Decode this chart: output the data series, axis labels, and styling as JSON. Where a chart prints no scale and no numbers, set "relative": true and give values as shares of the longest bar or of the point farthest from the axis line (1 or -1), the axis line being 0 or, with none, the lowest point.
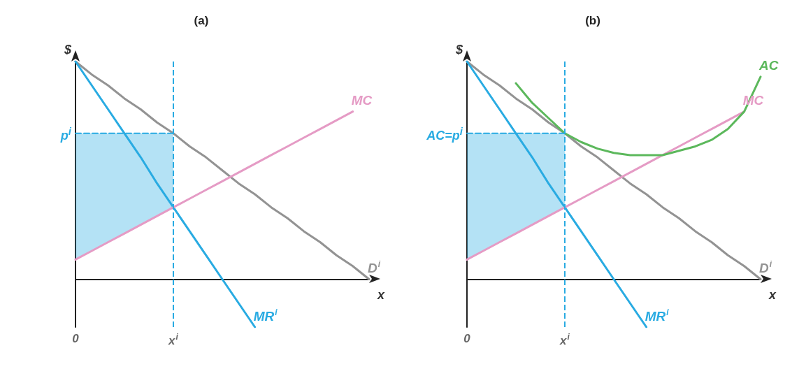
{
  "chart_data": [
    {
      "type": "line",
      "relative": true,
      "title": "(a)",
      "xlabel": "x",
      "ylabel": "$",
      "tick_labels": "x",
      "legend": false,
      "line_style": "solid",
      "categories": [
        "0",
        null,
        null,
        null,
        null,
        null,
        "x$^{i}$",
        null,
        null,
        null,
        null,
        null,
        null,
        null,
        null,
        null,
        null,
        null,
        null
      ],
      "series": [
        {
          "name": "D$^{i}$",
          "color": "#939393",
          "values": [
            1,
            0.94,
            0.89,
            0.83,
            0.78,
            0.72,
            0.67,
            0.61,
            0.56,
            0.5,
            0.44,
            0.39,
            0.33,
            0.28,
            0.22,
            0.17,
            0.11,
            0.06,
            0
          ]
        },
        {
          "name": "MR$^{i}$",
          "color": "#29abe2",
          "values": [
            1,
            0.89,
            0.78,
            0.67,
            0.56,
            0.44,
            0.33,
            0.22,
            0.11,
            0,
            -0.11,
            -0.22,
            null,
            null,
            null,
            null,
            null,
            null,
            null
          ]
        },
        {
          "name": "MC",
          "color": "#e59bc5",
          "values": [
            0.09,
            0.13,
            0.17,
            0.21,
            0.25,
            0.29,
            0.33,
            0.37,
            0.41,
            0.45,
            0.49,
            0.53,
            0.57,
            0.61,
            0.65,
            0.69,
            0.73,
            0.77,
            null
          ]
        },
        {
          "color": "#29abe2",
          "line_style": "dashed",
          "values": [
            0.67,
            0.67,
            0.67,
            0.67,
            0.67,
            0.67,
            0.67,
            null,
            null,
            null,
            null,
            null,
            null,
            null,
            null,
            null,
            null,
            null,
            null
          ],
          "lower": [
            0.09,
            0.13,
            0.17,
            0.21,
            0.25,
            0.29,
            0.33,
            null,
            null,
            null,
            null,
            null,
            null,
            null,
            null,
            null,
            null,
            null,
            null
          ],
          "upper": [
            0.67,
            0.67,
            0.67,
            0.67,
            0.67,
            0.67,
            0.67,
            null,
            null,
            null,
            null,
            null,
            null,
            null,
            null,
            null,
            null,
            null,
            null
          ]
        }
      ],
      "ref_lines": [
        {
          "axis": "x",
          "value": "x$^{i}$",
          "color": "#29abe2",
          "line_style": "dashed"
        }
      ],
      "annotations": [
        {
          "text": "p$^{i}$",
          "x": "0",
          "y": 0.67
        }
      ]
    },
    {
      "type": "line",
      "relative": true,
      "title": "(b)",
      "xlabel": "x",
      "ylabel": "$",
      "tick_labels": "x",
      "legend": false,
      "line_style": "solid",
      "categories": [
        "0",
        null,
        null,
        null,
        null,
        null,
        "x$^{i}$",
        null,
        null,
        null,
        null,
        null,
        null,
        null,
        null,
        null,
        null,
        null,
        null
      ],
      "series": [
        {
          "name": "D$^{i}$",
          "color": "#939393",
          "values": [
            1,
            0.94,
            0.89,
            0.83,
            0.78,
            0.72,
            0.67,
            0.61,
            0.56,
            0.5,
            0.44,
            0.39,
            0.33,
            0.28,
            0.22,
            0.17,
            0.11,
            0.06,
            0
          ]
        },
        {
          "name": "MR$^{i}$",
          "color": "#29abe2",
          "values": [
            1,
            0.89,
            0.78,
            0.67,
            0.56,
            0.44,
            0.33,
            0.22,
            0.11,
            0,
            -0.11,
            -0.22,
            null,
            null,
            null,
            null,
            null,
            null,
            null
          ]
        },
        {
          "name": "MC",
          "color": "#e59bc5",
          "values": [
            0.09,
            0.13,
            0.17,
            0.21,
            0.25,
            0.29,
            0.33,
            0.37,
            0.41,
            0.45,
            0.49,
            0.53,
            0.57,
            0.61,
            0.65,
            0.69,
            0.73,
            0.77,
            null
          ]
        },
        {
          "name": "AC",
          "color": "#5cb85c",
          "values": [
            null,
            null,
            null,
            0.9,
            0.81,
            0.74,
            0.67,
            0.63,
            0.6,
            0.58,
            0.57,
            0.57,
            0.57,
            0.59,
            0.61,
            0.64,
            0.69,
            0.77,
            0.93
          ]
        },
        {
          "color": "#29abe2",
          "line_style": "dashed",
          "values": [
            0.67,
            0.67,
            0.67,
            0.67,
            0.67,
            0.67,
            0.67,
            null,
            null,
            null,
            null,
            null,
            null,
            null,
            null,
            null,
            null,
            null,
            null
          ],
          "lower": [
            0.09,
            0.13,
            0.17,
            0.21,
            0.25,
            0.29,
            0.33,
            null,
            null,
            null,
            null,
            null,
            null,
            null,
            null,
            null,
            null,
            null,
            null
          ],
          "upper": [
            0.67,
            0.67,
            0.67,
            0.67,
            0.67,
            0.67,
            0.67,
            null,
            null,
            null,
            null,
            null,
            null,
            null,
            null,
            null,
            null,
            null,
            null
          ]
        }
      ],
      "ref_lines": [
        {
          "axis": "x",
          "value": "x$^{i}$",
          "color": "#29abe2",
          "line_style": "dashed"
        }
      ],
      "annotations": [
        {
          "text": "AC=p$^{i}$",
          "x": "0",
          "y": 0.67
        }
      ]
    }
  ]
}
